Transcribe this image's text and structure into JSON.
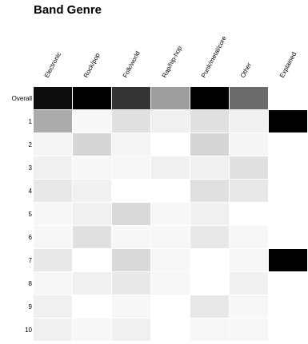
{
  "chart_data": {
    "type": "heatmap",
    "title": "Band Genre",
    "columns": [
      "Electronic",
      "Rock/pop",
      "Folk/world",
      "Rap/hip-hop",
      "Punk/metal/core",
      "Other",
      "Explained"
    ],
    "rows": [
      "Overall",
      "1",
      "2",
      "3",
      "4",
      "5",
      "6",
      "7",
      "8",
      "9",
      "10"
    ],
    "values": [
      [
        0.95,
        1.0,
        0.8,
        0.38,
        1.0,
        0.58,
        0.0
      ],
      [
        0.33,
        0.03,
        0.12,
        0.06,
        0.12,
        0.06,
        1.0
      ],
      [
        0.04,
        0.16,
        0.04,
        0.0,
        0.16,
        0.04,
        0.0
      ],
      [
        0.06,
        0.03,
        0.03,
        0.06,
        0.06,
        0.12,
        0.0
      ],
      [
        0.09,
        0.06,
        0.0,
        0.0,
        0.12,
        0.09,
        0.0
      ],
      [
        0.03,
        0.06,
        0.15,
        0.03,
        0.06,
        0.0,
        0.0
      ],
      [
        0.03,
        0.12,
        0.03,
        0.03,
        0.09,
        0.03,
        0.0
      ],
      [
        0.09,
        0.0,
        0.15,
        0.03,
        0.0,
        0.03,
        1.0
      ],
      [
        0.03,
        0.06,
        0.09,
        0.03,
        0.0,
        0.06,
        0.0
      ],
      [
        0.06,
        0.0,
        0.03,
        0.0,
        0.09,
        0.03,
        0.0
      ],
      [
        0.06,
        0.03,
        0.06,
        0.0,
        0.03,
        0.03,
        0.0
      ]
    ],
    "color_scale": {
      "low": "#ffffff",
      "high": "#000000"
    },
    "grid": false,
    "legend": "none"
  }
}
